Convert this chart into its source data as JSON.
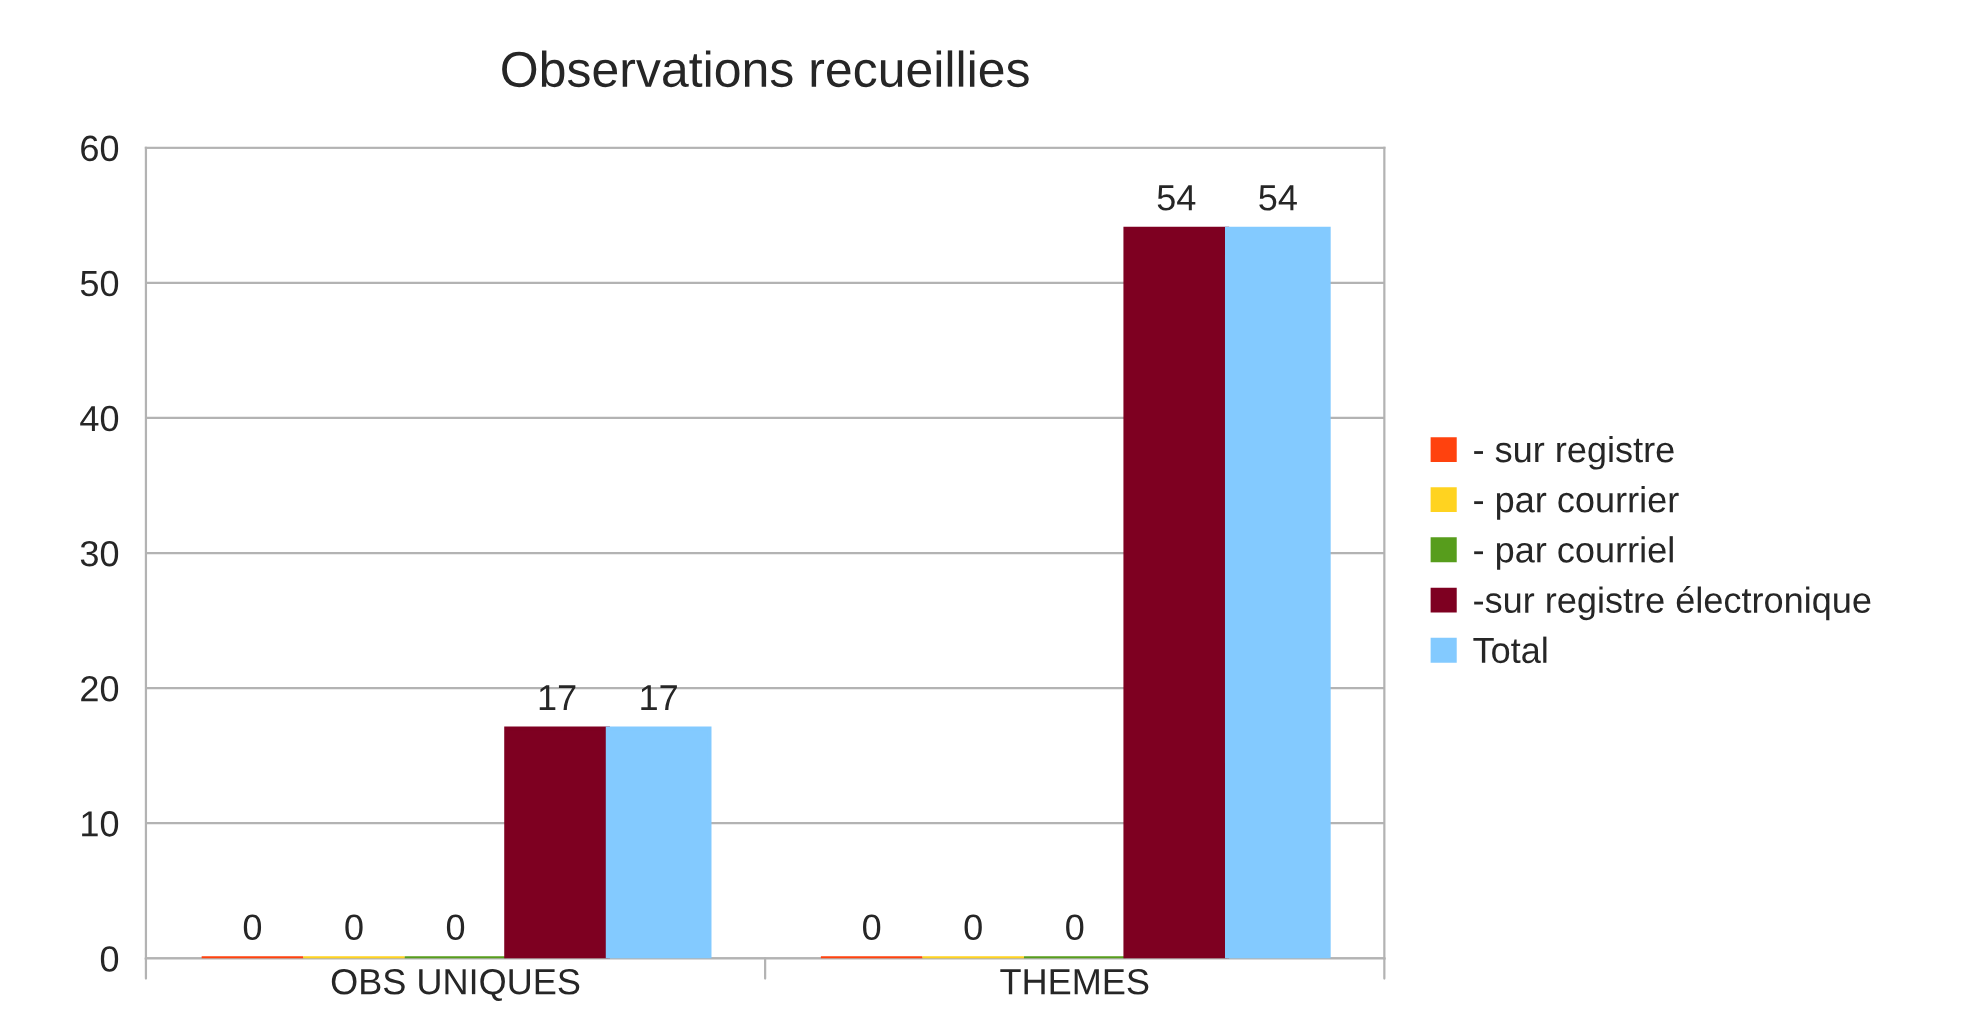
{
  "chart_data": {
    "type": "bar",
    "title": "Observations recueillies",
    "categories": [
      "OBS UNIQUES",
      "THEMES"
    ],
    "series": [
      {
        "name": "- sur registre",
        "color": "#ff420e",
        "values": [
          0,
          0
        ]
      },
      {
        "name": "- par courrier",
        "color": "#ffd320",
        "values": [
          0,
          0
        ]
      },
      {
        "name": "- par courriel",
        "color": "#579d1c",
        "values": [
          0,
          0
        ]
      },
      {
        "name": "-sur registre électronique",
        "color": "#7e0021",
        "values": [
          17,
          54
        ]
      },
      {
        "name": "Total",
        "color": "#83caff",
        "values": [
          17,
          54
        ]
      }
    ],
    "ylim": [
      0,
      60
    ],
    "yticks": [
      0,
      10,
      20,
      30,
      40,
      50,
      60
    ],
    "grid": "y",
    "legend": "right",
    "data_labels": true
  }
}
